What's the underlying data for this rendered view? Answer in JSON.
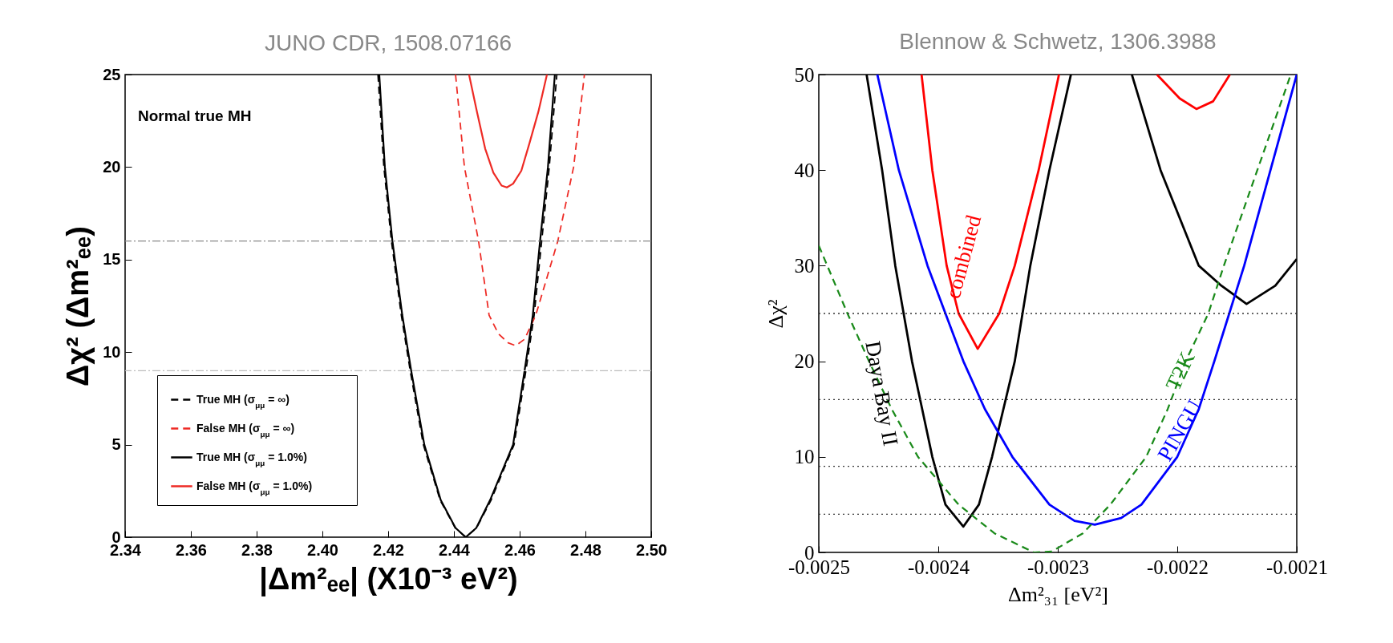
{
  "chart_data": [
    {
      "type": "line",
      "title": "JUNO CDR, 1508.07166",
      "xlabel": "|Δm²ₑₑ| (X10⁻³ eV²)",
      "ylabel": "Δχ² (Δm²ₑₑ)",
      "xlim": [
        2.34,
        2.5
      ],
      "ylim": [
        0,
        25
      ],
      "xticks": [
        2.34,
        2.36,
        2.38,
        {
          "value": 2.4,
          "label": "2.40"
        },
        2.42,
        2.44,
        2.46,
        2.48,
        {
          "value": 2.5,
          "label": "2.50"
        }
      ],
      "yticks": [
        0,
        5,
        10,
        15,
        20,
        25
      ],
      "legend": "bottom left",
      "annotations": [
        "Normal true MH"
      ],
      "ref_lines": [
        {
          "axis": "y",
          "value": 16,
          "color": "#888888",
          "line_style": "dashdot"
        },
        {
          "axis": "y",
          "value": 9,
          "color": "#bbbbbb",
          "line_style": "dashdot"
        }
      ],
      "series": [
        {
          "name": "True MH (σ$_{μμ}$ = ∞)",
          "color": "#000000",
          "line_style": "dashed",
          "x": [
            2.4169,
            2.4187,
            2.421,
            2.424,
            2.4267,
            2.4307,
            2.4358,
            2.4404,
            2.4436,
            2.4469,
            2.4513,
            2.4583,
            2.4619,
            2.4644,
            2.4667,
            2.469,
            2.4713
          ],
          "values": [
            25,
            20,
            16,
            12,
            9,
            5,
            2,
            0.5,
            0,
            0.5,
            2,
            5,
            9,
            12,
            16,
            20,
            25
          ]
        },
        {
          "name": "False MH (σ$_{μμ}$ = ∞)",
          "color": "#ee2a24",
          "line_style": "dashed",
          "x": [
            2.4405,
            2.4432,
            2.4475,
            2.4507,
            2.4535,
            2.4565,
            2.4588,
            2.4615,
            2.4649,
            2.4716,
            2.4764,
            2.4797
          ],
          "values": [
            25,
            20,
            16,
            12,
            11,
            10.5,
            10.35,
            10.7,
            12,
            16,
            20,
            25
          ]
        },
        {
          "name": "True MH (σ$_{μμ}$ = 1.0%)",
          "color": "#000000",
          "line_style": "solid",
          "x": [
            2.4173,
            2.419,
            2.4213,
            2.4243,
            2.427,
            2.431,
            2.436,
            2.4405,
            2.4436,
            2.4468,
            2.451,
            2.458,
            2.4615,
            2.464,
            2.4662,
            2.4686,
            2.4707
          ],
          "values": [
            25,
            20,
            16,
            12,
            9,
            5,
            2,
            0.5,
            0,
            0.5,
            2,
            5,
            9,
            12,
            16,
            20,
            25
          ]
        },
        {
          "name": "False MH (σ$_{μμ}$ = 1.0%)",
          "color": "#ee2a24",
          "line_style": "solid",
          "x": [
            2.4446,
            2.447,
            2.4495,
            2.452,
            2.4545,
            2.4561,
            2.458,
            2.4605,
            2.463,
            2.4657,
            2.4683
          ],
          "values": [
            25,
            23,
            21,
            19.7,
            19,
            18.9,
            19.1,
            19.8,
            21.3,
            23,
            25
          ]
        }
      ]
    },
    {
      "type": "line",
      "title": "Blennow & Schwetz, 1306.3988",
      "xlabel": "Δm²₃₁ [eV²]",
      "ylabel": "Δχ²",
      "xlim": [
        -0.0025,
        -0.0021
      ],
      "ylim": [
        0,
        50
      ],
      "xticks": [
        -0.0025,
        -0.0024,
        -0.0023,
        -0.0022,
        -0.0021
      ],
      "yticks": [
        0,
        10,
        20,
        30,
        40,
        50
      ],
      "ref_lines": [
        {
          "axis": "y",
          "value": 25,
          "color": "#333333",
          "line_style": "dotted"
        },
        {
          "axis": "y",
          "value": 16,
          "color": "#333333",
          "line_style": "dotted"
        },
        {
          "axis": "y",
          "value": 9,
          "color": "#333333",
          "line_style": "dotted"
        },
        {
          "axis": "y",
          "value": 4,
          "color": "#333333",
          "line_style": "dotted"
        }
      ],
      "series": [
        {
          "name": "Daya Bay II",
          "color": "#000000",
          "line_style": "solid",
          "x": [
            -0.00246,
            -0.002447,
            -0.002436,
            -0.002422,
            -0.002405,
            -0.002394,
            -0.002379,
            -0.002366,
            -0.002355,
            -0.002336,
            -0.002323,
            -0.002307,
            -0.002289
          ],
          "values": [
            50,
            40,
            30,
            20,
            10,
            5,
            2.7,
            5,
            10,
            20,
            30,
            40,
            50
          ]
        },
        {
          "color": "#000000",
          "line_style": "solid",
          "x": [
            -0.002238,
            -0.002214,
            -0.002182,
            -0.002163,
            -0.002142,
            -0.002118,
            -0.0021
          ],
          "values": [
            50,
            40,
            30,
            27.9,
            26,
            27.9,
            30.7
          ]
        },
        {
          "name": "combined",
          "color": "#ff0000",
          "line_style": "solid",
          "x": [
            -0.002414,
            -0.002405,
            -0.002393,
            -0.002383,
            -0.002367,
            -0.002349,
            -0.002336,
            -0.002316,
            -0.002299
          ],
          "values": [
            50,
            40,
            30,
            25,
            21.3,
            25,
            30,
            40,
            50
          ]
        },
        {
          "color": "#ff0000",
          "line_style": "solid",
          "x": [
            -0.002217,
            -0.002198,
            -0.002184,
            -0.00217,
            -0.002156
          ],
          "values": [
            50,
            47.5,
            46.4,
            47.2,
            50
          ]
        },
        {
          "name": "PINGU",
          "color": "#0000ff",
          "line_style": "solid",
          "x": [
            -0.002451,
            -0.002433,
            -0.002409,
            -0.002379,
            -0.002361,
            -0.002338,
            -0.002307,
            -0.002286,
            -0.002269,
            -0.002247,
            -0.00223,
            -0.0022,
            -0.002182,
            -0.002169,
            -0.002144,
            -0.002122,
            -0.0021
          ],
          "values": [
            50,
            40,
            30,
            20,
            15,
            10,
            5,
            3.3,
            2.9,
            3.6,
            5,
            10,
            15,
            20,
            30,
            40,
            50
          ]
        },
        {
          "name": "T2K",
          "color": "#1a8a1a",
          "line_style": "dashed",
          "x": [
            -0.0025,
            -0.002476,
            -0.002458,
            -0.002439,
            -0.002417,
            -0.002383,
            -0.002353,
            -0.00232,
            -0.002305,
            -0.002279,
            -0.002256,
            -0.002226,
            -0.002208,
            -0.002193,
            -0.002174,
            -0.002161,
            -0.002133,
            -0.002105
          ],
          "values": [
            32.1,
            25,
            20,
            15,
            10,
            5,
            2,
            0,
            0.1,
            2,
            5,
            10,
            15,
            20,
            25,
            30,
            40,
            50
          ]
        }
      ]
    }
  ]
}
